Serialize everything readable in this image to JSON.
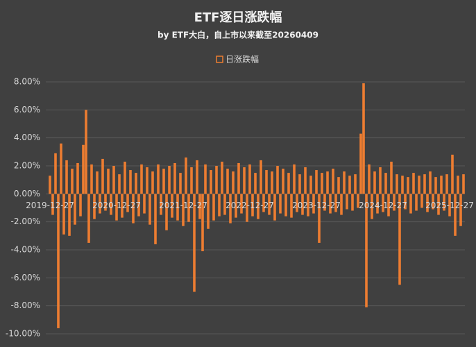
{
  "chart_data": {
    "type": "bar",
    "title": "ETF逐日涨跌幅",
    "subtitle": "by ETF大白，自上市以来截至20260409",
    "legend": "top",
    "grid": true,
    "categories": [
      "2019-12-27",
      null,
      null,
      null,
      null,
      null,
      null,
      null,
      null,
      null,
      null,
      null,
      null,
      null,
      null,
      null,
      null,
      null,
      null,
      null,
      null,
      null,
      null,
      null,
      "2020-12-27",
      null,
      null,
      null,
      null,
      null,
      null,
      null,
      null,
      null,
      null,
      null,
      null,
      null,
      null,
      null,
      null,
      null,
      null,
      null,
      null,
      null,
      null,
      null,
      "2021-12-27",
      null,
      null,
      null,
      null,
      null,
      null,
      null,
      null,
      null,
      null,
      null,
      null,
      null,
      null,
      null,
      null,
      null,
      null,
      null,
      null,
      null,
      null,
      null,
      "2022-12-27",
      null,
      null,
      null,
      null,
      null,
      null,
      null,
      null,
      null,
      null,
      null,
      null,
      null,
      null,
      null,
      null,
      null,
      null,
      null,
      null,
      null,
      null,
      null,
      "2023-12-27",
      null,
      null,
      null,
      null,
      null,
      null,
      null,
      null,
      null,
      null,
      null,
      null,
      null,
      null,
      null,
      null,
      null,
      null,
      null,
      null,
      null,
      null,
      null,
      "2024-12-27",
      null,
      null,
      null,
      null,
      null,
      null,
      null,
      null,
      null,
      null,
      null,
      null,
      null,
      null,
      null,
      null,
      null,
      null,
      null,
      null,
      null,
      null,
      null,
      "2025-12-27",
      null,
      null,
      null,
      null,
      null
    ],
    "series": [
      {
        "name": "日涨跌幅",
        "color": "#ed7d31",
        "values": [
          1.3,
          -1.5,
          2.9,
          -9.6,
          3.6,
          -2.9,
          2.4,
          -3.0,
          1.8,
          -2.2,
          2.2,
          -1.6,
          3.5,
          6.0,
          -3.5,
          2.1,
          -1.8,
          1.6,
          -1.4,
          2.5,
          -1.2,
          1.8,
          -1.5,
          2.0,
          -1.9,
          1.4,
          -1.7,
          2.3,
          -1.3,
          1.7,
          -2.1,
          1.5,
          -1.6,
          2.1,
          -1.4,
          1.9,
          -2.2,
          1.6,
          -3.6,
          2.1,
          -1.5,
          1.8,
          -2.6,
          2.0,
          -1.7,
          2.2,
          -1.9,
          1.5,
          -2.3,
          2.6,
          -2.0,
          1.9,
          -7.0,
          2.4,
          -1.8,
          -4.1,
          2.1,
          -2.5,
          1.7,
          -1.9,
          2.0,
          -1.6,
          2.3,
          -1.5,
          1.8,
          -2.1,
          1.6,
          -1.7,
          2.2,
          -1.4,
          1.9,
          -2.0,
          2.1,
          -1.6,
          1.5,
          -1.8,
          2.4,
          -1.3,
          1.7,
          -1.5,
          1.6,
          -1.9,
          2.0,
          -1.4,
          1.8,
          -1.6,
          1.5,
          -1.7,
          2.1,
          -1.3,
          1.4,
          -1.5,
          1.9,
          -1.6,
          1.3,
          -1.4,
          1.7,
          -3.5,
          1.5,
          -1.2,
          1.6,
          -1.4,
          1.8,
          -1.3,
          1.2,
          -1.5,
          1.6,
          -1.1,
          1.3,
          -1.2,
          1.4,
          -1.0,
          4.3,
          7.9,
          -8.1,
          2.1,
          -1.8,
          1.6,
          -1.4,
          1.9,
          -1.3,
          1.5,
          -1.6,
          2.3,
          -1.2,
          1.4,
          -6.5,
          1.3,
          -1.1,
          1.2,
          -1.4,
          1.5,
          -1.2,
          1.3,
          -1.0,
          1.4,
          -1.3,
          1.6,
          -1.1,
          1.2,
          -1.5,
          1.3,
          -1.2,
          1.4,
          -1.6,
          2.8,
          -3.0,
          1.3,
          -2.3,
          1.4
        ]
      }
    ],
    "ylim": [
      -10,
      8
    ],
    "yticks": [
      {
        "value": 8,
        "label": "8.00%"
      },
      {
        "value": 6,
        "label": "6.00%"
      },
      {
        "value": 4,
        "label": "4.00%"
      },
      {
        "value": 2,
        "label": "2.00%"
      },
      {
        "value": 0,
        "label": "0.00%"
      },
      {
        "value": -2,
        "label": "-2.00%"
      },
      {
        "value": -4,
        "label": "-4.00%"
      },
      {
        "value": -6,
        "label": "-6.00%"
      },
      {
        "value": -8,
        "label": "-8.00%"
      },
      {
        "value": -10,
        "label": "-10.00%"
      }
    ]
  }
}
